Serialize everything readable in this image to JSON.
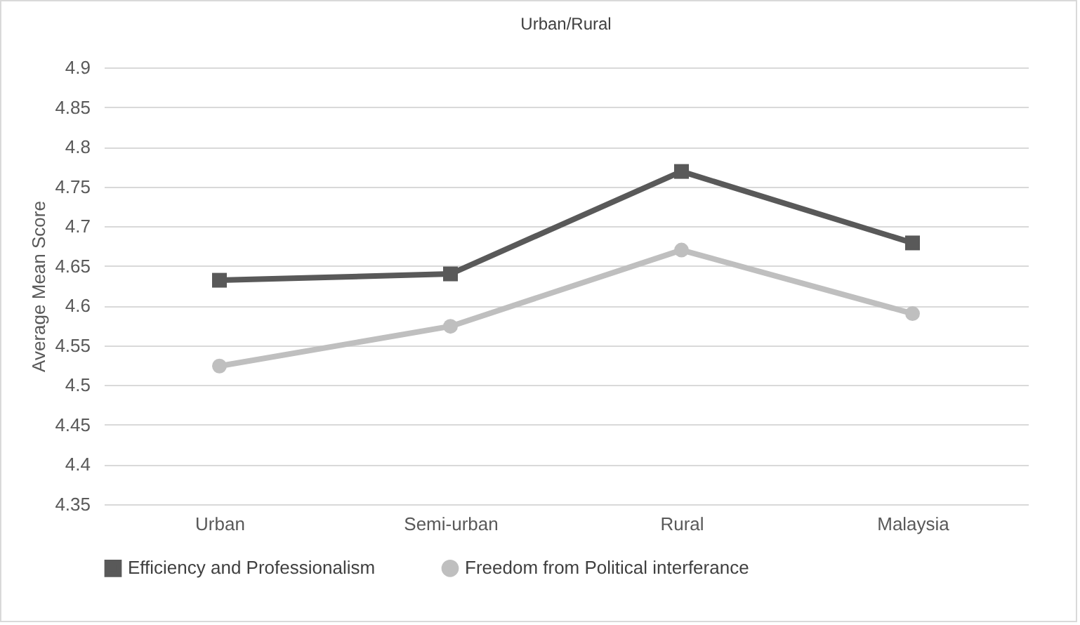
{
  "chart_data": {
    "type": "line",
    "title": "Urban/Rural",
    "ylabel": "Average Mean Score",
    "categories": [
      "Urban",
      "Semi-urban",
      "Rural",
      "Malaysia"
    ],
    "series": [
      {
        "name": "Efficiency and Professionalism",
        "color": "#595959",
        "marker": "square",
        "values": [
          4.632,
          4.64,
          4.769,
          4.679
        ]
      },
      {
        "name": "Freedom from Political interferance",
        "color": "#bfbfbf",
        "marker": "circle",
        "values": [
          4.524,
          4.574,
          4.67,
          4.59
        ]
      }
    ],
    "ylim": [
      4.35,
      4.9
    ],
    "yticks": [
      4.35,
      4.4,
      4.45,
      4.5,
      4.55,
      4.6,
      4.65,
      4.7,
      4.75,
      4.8,
      4.85,
      4.9
    ],
    "grid": "y",
    "legend": "bottom"
  }
}
